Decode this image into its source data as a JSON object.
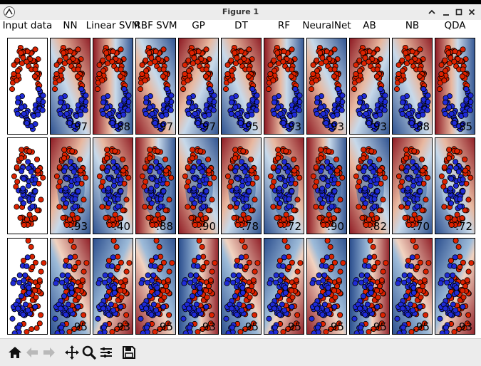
{
  "window": {
    "title": "Figure 1"
  },
  "window_controls": [
    "collapse-icon",
    "minimize-icon",
    "maximize-icon",
    "close-icon"
  ],
  "columns": [
    "Input data",
    "NN",
    "Linear SVM",
    "RBF SVM",
    "GP",
    "DT",
    "RF",
    "NeuralNet",
    "AB",
    "NB",
    "QDA"
  ],
  "scores": [
    [
      "",
      ".97",
      ".88",
      ".97",
      ".97",
      ".95",
      ".93",
      ".93",
      ".93",
      ".88",
      ".85"
    ],
    [
      "",
      ".93",
      ".40",
      ".88",
      ".90",
      ".78",
      ".72",
      ".90",
      ".82",
      ".70",
      ".72"
    ],
    [
      "",
      ".95",
      ".93",
      ".95",
      ".93",
      ".95",
      ".95",
      ".95",
      ".95",
      ".95",
      ".93"
    ]
  ],
  "colors": {
    "red": "#dd2200",
    "blue": "#1f2bd8",
    "dark_red": "#8e1b24",
    "dark_blue": "#2c4f8e"
  },
  "toolbar": [
    "home-icon",
    "back-icon",
    "forward-icon",
    "pan-icon",
    "zoom-icon",
    "configure-icon",
    "save-icon"
  ]
}
